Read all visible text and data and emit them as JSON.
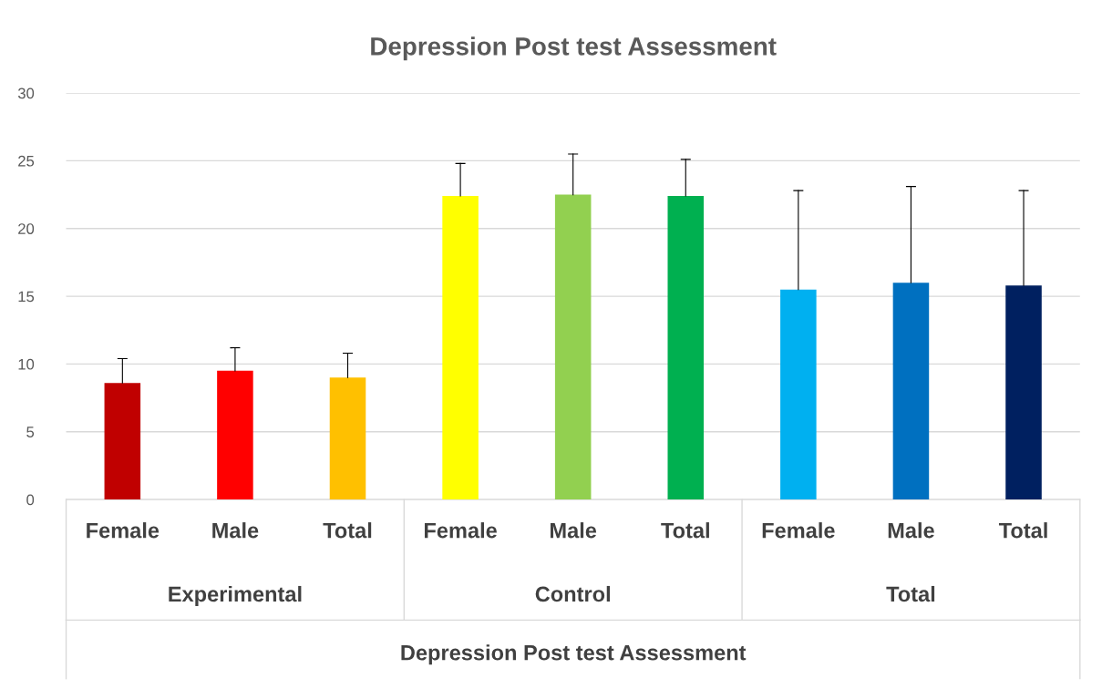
{
  "chart_data": {
    "type": "bar",
    "title": "Depression Post test Assessment",
    "xlabel": "Depression Post test Assessment",
    "categories": [
      "Female",
      "Male",
      "Total",
      "Female",
      "Male",
      "Total",
      "Female",
      "Male",
      "Total"
    ],
    "values": [
      8.6,
      9.5,
      9.0,
      22.4,
      22.5,
      22.4,
      15.5,
      16.0,
      15.8
    ],
    "colors": [
      "#c00000",
      "#ff0000",
      "#ffc000",
      "#ffff00",
      "#92d050",
      "#00b050",
      "#00b0f0",
      "#0070c0",
      "#002060"
    ],
    "errors": [
      [
        8.6,
        10.4
      ],
      [
        9.5,
        11.2
      ],
      [
        9.0,
        10.8
      ],
      [
        22.4,
        24.8
      ],
      [
        22.5,
        25.5
      ],
      [
        22.4,
        25.1
      ],
      [
        15.5,
        22.8
      ],
      [
        16.0,
        23.1
      ],
      [
        15.8,
        22.8
      ]
    ],
    "annotations": [
      "Experimental",
      "Control",
      "Total"
    ],
    "ylim": [
      0,
      30
    ],
    "yticks": [
      0,
      5,
      10,
      15,
      20,
      25,
      30
    ],
    "grid": "y"
  }
}
